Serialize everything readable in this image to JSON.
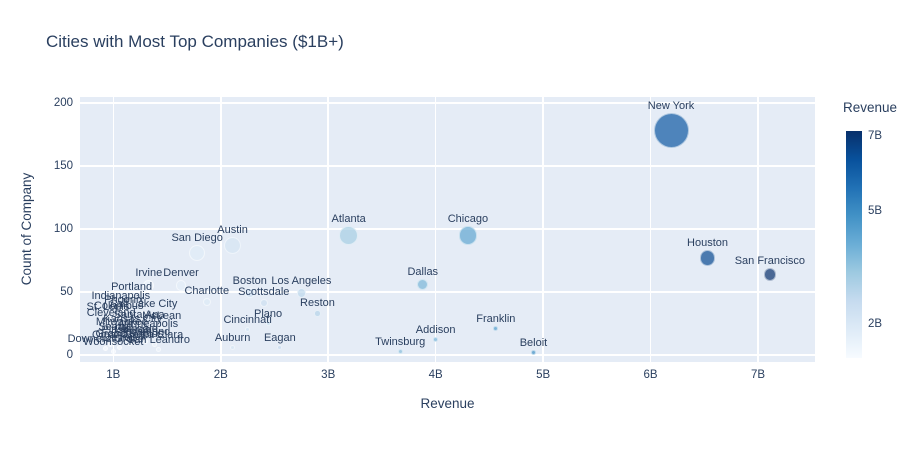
{
  "title": "Cities with Most Top Companies ($1B+)",
  "colors": {
    "plot_background": "#e5ecf6",
    "grid": "#ffffff",
    "font": "#2a3f5f",
    "marker_opacity": 0.7,
    "blues_scale": [
      "#f7fbff",
      "#deebf7",
      "#c6dbef",
      "#9ecae1",
      "#6baed6",
      "#4292c6",
      "#2171b5",
      "#08519c",
      "#08306b"
    ]
  },
  "chart_data": {
    "type": "scatter",
    "title": "Cities with Most Top Companies ($1B+)",
    "xlabel": "Revenue",
    "ylabel": "Count of Company",
    "legend_position": "right-colorbar",
    "grid": true,
    "x_range_b": [
      0.69,
      7.53
    ],
    "y_range": [
      -5.6,
      204.8
    ],
    "x_ticks": [
      {
        "v": 1,
        "label": "1B"
      },
      {
        "v": 2,
        "label": "2B"
      },
      {
        "v": 3,
        "label": "3B"
      },
      {
        "v": 4,
        "label": "4B"
      },
      {
        "v": 5,
        "label": "5B"
      },
      {
        "v": 6,
        "label": "6B"
      },
      {
        "v": 7,
        "label": "7B"
      }
    ],
    "y_ticks": [
      {
        "v": 0,
        "label": "0"
      },
      {
        "v": 50,
        "label": "50"
      },
      {
        "v": 100,
        "label": "100"
      },
      {
        "v": 150,
        "label": "150"
      },
      {
        "v": 200,
        "label": "200"
      }
    ],
    "colorbar": {
      "title": "Revenue",
      "range_b": [
        1.1,
        7.12
      ],
      "ticks": [
        {
          "v": 2,
          "label": "2B"
        },
        {
          "v": 5,
          "label": "5B"
        },
        {
          "v": 7,
          "label": "7B"
        }
      ]
    },
    "size_by": "count",
    "color_by": "revenue_b",
    "max_marker_px": 35,
    "points": [
      {
        "city": "New York",
        "revenue_b": 6.19,
        "count": 178
      },
      {
        "city": "Chicago",
        "revenue_b": 4.3,
        "count": 95
      },
      {
        "city": "Atlanta",
        "revenue_b": 3.19,
        "count": 95
      },
      {
        "city": "Austin",
        "revenue_b": 2.11,
        "count": 87
      },
      {
        "city": "San Diego",
        "revenue_b": 1.78,
        "count": 81
      },
      {
        "city": "Houston",
        "revenue_b": 6.53,
        "count": 77
      },
      {
        "city": "San Francisco",
        "revenue_b": 7.11,
        "count": 64
      },
      {
        "city": "Dallas",
        "revenue_b": 3.88,
        "count": 56
      },
      {
        "city": "Denver",
        "revenue_b": 1.63,
        "count": 55
      },
      {
        "city": "Irvine",
        "revenue_b": 1.33,
        "count": 55
      },
      {
        "city": "Boston",
        "revenue_b": 2.27,
        "count": 49
      },
      {
        "city": "Los Angeles",
        "revenue_b": 2.75,
        "count": 49
      },
      {
        "city": "Portland",
        "revenue_b": 1.17,
        "count": 45
      },
      {
        "city": "Charlotte",
        "revenue_b": 1.87,
        "count": 42
      },
      {
        "city": "Scottsdale",
        "revenue_b": 2.4,
        "count": 41
      },
      {
        "city": "Indianapolis",
        "revenue_b": 1.07,
        "count": 38
      },
      {
        "city": "Phoenix",
        "revenue_b": 1.1,
        "count": 35
      },
      {
        "city": "Reston",
        "revenue_b": 2.9,
        "count": 33
      },
      {
        "city": "Salt Lake City",
        "revenue_b": 1.28,
        "count": 32
      },
      {
        "city": "Columbus",
        "revenue_b": 1.05,
        "count": 31
      },
      {
        "city": "St. Louis",
        "revenue_b": 0.95,
        "count": 30
      },
      {
        "city": "Cleveland",
        "revenue_b": 0.98,
        "count": 26
      },
      {
        "city": "Plano",
        "revenue_b": 2.44,
        "count": 25
      },
      {
        "city": "Santa Ana",
        "revenue_b": 1.24,
        "count": 24
      },
      {
        "city": "McLean",
        "revenue_b": 1.45,
        "count": 23
      },
      {
        "city": "Kansas City",
        "revenue_b": 1.18,
        "count": 21
      },
      {
        "city": "Franklin",
        "revenue_b": 4.56,
        "count": 21
      },
      {
        "city": "Cincinnati",
        "revenue_b": 2.25,
        "count": 20
      },
      {
        "city": "Milwaukee",
        "revenue_b": 1.08,
        "count": 19
      },
      {
        "city": "Minneapolis",
        "revenue_b": 1.33,
        "count": 17
      },
      {
        "city": "Seattle",
        "revenue_b": 1.02,
        "count": 15
      },
      {
        "city": "Glendale",
        "revenue_b": 1.21,
        "count": 13
      },
      {
        "city": "Addison",
        "revenue_b": 4.0,
        "count": 12
      },
      {
        "city": "Pittsburgh",
        "revenue_b": 1.12,
        "count": 12
      },
      {
        "city": "Richmond",
        "revenue_b": 1.3,
        "count": 11
      },
      {
        "city": "Grand Rapids",
        "revenue_b": 1.15,
        "count": 9
      },
      {
        "city": "Omaha",
        "revenue_b": 0.97,
        "count": 8
      },
      {
        "city": "Santa Clara",
        "revenue_b": 1.38,
        "count": 8
      },
      {
        "city": "Auburn",
        "revenue_b": 2.11,
        "count": 6
      },
      {
        "city": "Eagan",
        "revenue_b": 2.55,
        "count": 6
      },
      {
        "city": "Detroit",
        "revenue_b": 1.06,
        "count": 6
      },
      {
        "city": "Downers Grove",
        "revenue_b": 0.93,
        "count": 5
      },
      {
        "city": "San Leandro",
        "revenue_b": 1.42,
        "count": 4
      },
      {
        "city": "Woonsocket",
        "revenue_b": 1.0,
        "count": 3
      },
      {
        "city": "Twinsburg",
        "revenue_b": 3.67,
        "count": 3
      },
      {
        "city": "Beloit",
        "revenue_b": 4.91,
        "count": 2
      }
    ]
  }
}
